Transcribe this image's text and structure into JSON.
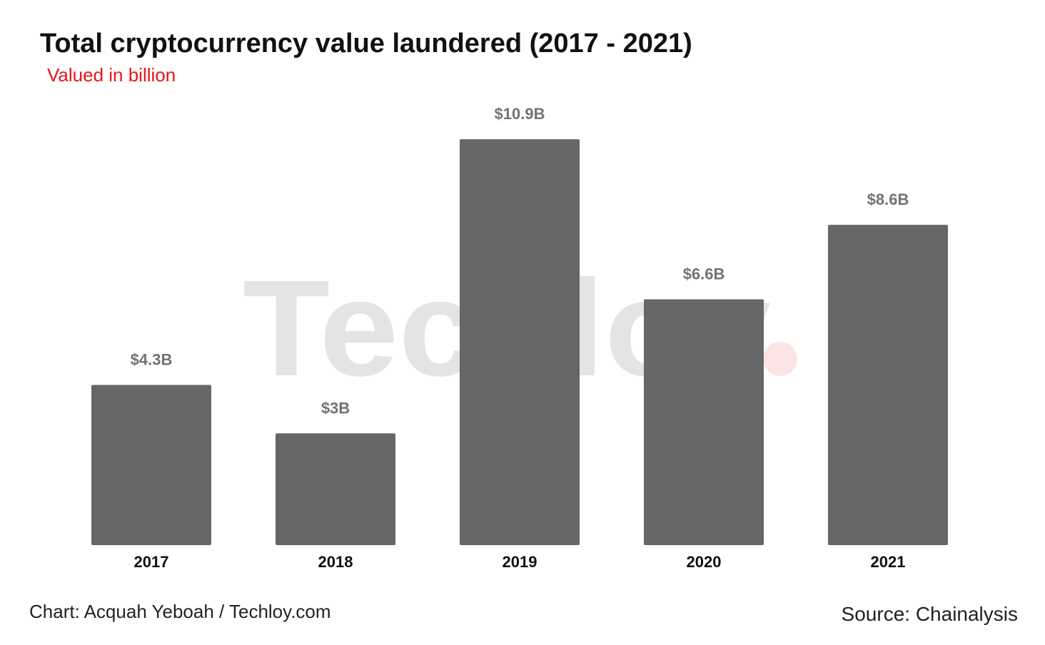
{
  "header": {
    "title": "Total cryptocurrency value laundered (2017 - 2021)",
    "subtitle": "Valued in billion"
  },
  "footer": {
    "credit": "Chart: Acquah Yeboah / Techloy.com",
    "source": "Source: Chainalysis"
  },
  "watermark": {
    "text": "Techloy",
    "dot_color": "#fde4e4"
  },
  "colors": {
    "bar": "#666666",
    "data_label": "#737373",
    "category_label": "#111111",
    "subtitle": "#e8141b"
  },
  "chart_data": {
    "type": "bar",
    "title": "Total cryptocurrency value laundered (2017 - 2021)",
    "subtitle": "Valued in billion",
    "xlabel": "",
    "ylabel": "",
    "categories": [
      "2017",
      "2018",
      "2019",
      "2020",
      "2021"
    ],
    "values": [
      4.3,
      3,
      10.9,
      6.6,
      8.6
    ],
    "data_labels": [
      "$4.3B",
      "$3B",
      "$10.9B",
      "$6.6B",
      "$8.6B"
    ],
    "ylim": [
      0,
      12.3
    ],
    "grid": false,
    "legend": "none"
  }
}
